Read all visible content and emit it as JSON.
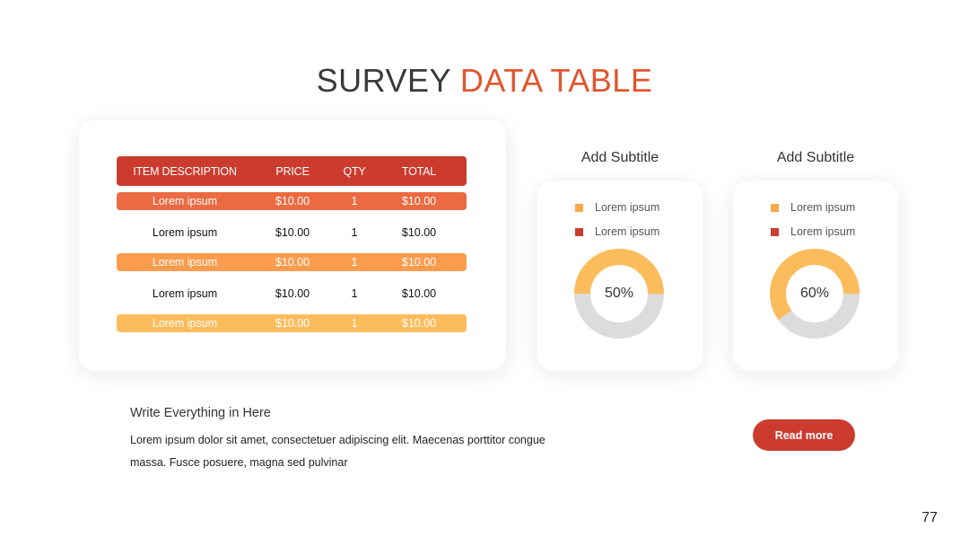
{
  "title": {
    "part1": "SURVEY",
    "part2": "DATA TABLE"
  },
  "table": {
    "headers": [
      "ITEM DESCRIPTION",
      "PRICE",
      "QTY",
      "TOTAL"
    ],
    "rows": [
      [
        "Lorem ipsum",
        "$10.00",
        "1",
        "$10.00"
      ],
      [
        "Lorem ipsum",
        "$10.00",
        "1",
        "$10.00"
      ],
      [
        "Lorem ipsum",
        "$10.00",
        "1",
        "$10.00"
      ],
      [
        "Lorem ipsum",
        "$10.00",
        "1",
        "$10.00"
      ],
      [
        "Lorem ipsum",
        "$10.00",
        "1",
        "$10.00"
      ]
    ]
  },
  "charts": [
    {
      "subtitle": "Add Subtitle",
      "legend": [
        "Lorem ipsum",
        "Lorem ipsum"
      ],
      "value": 50,
      "label": "50%"
    },
    {
      "subtitle": "Add Subtitle",
      "legend": [
        "Lorem ipsum",
        "Lorem ipsum"
      ],
      "value": 60,
      "label": "60%"
    }
  ],
  "chart_data": [
    {
      "type": "pie",
      "categories": [
        "Lorem ipsum",
        "Lorem ipsum"
      ],
      "values": [
        50,
        50
      ],
      "title": "Add Subtitle"
    },
    {
      "type": "pie",
      "categories": [
        "Lorem ipsum",
        "Lorem ipsum"
      ],
      "values": [
        60,
        40
      ],
      "title": "Add Subtitle"
    }
  ],
  "colors": {
    "accent": "#e0562f",
    "header": "#cb3c2f",
    "row1": "#eb6a42",
    "row3": "#fb9c4e",
    "row5": "#fdbc5c",
    "legend1": "#fba84a",
    "legend2": "#cb3c2f",
    "donut_fill": "#fdbc5c",
    "donut_track": "#dcdcdc"
  },
  "text_block": {
    "heading": "Write Everything in Here",
    "body": "Lorem ipsum dolor sit amet, consectetuer adipiscing elit. Maecenas porttitor congue massa. Fusce posuere, magna sed pulvinar"
  },
  "button": {
    "label": "Read more"
  },
  "page_number": "77"
}
